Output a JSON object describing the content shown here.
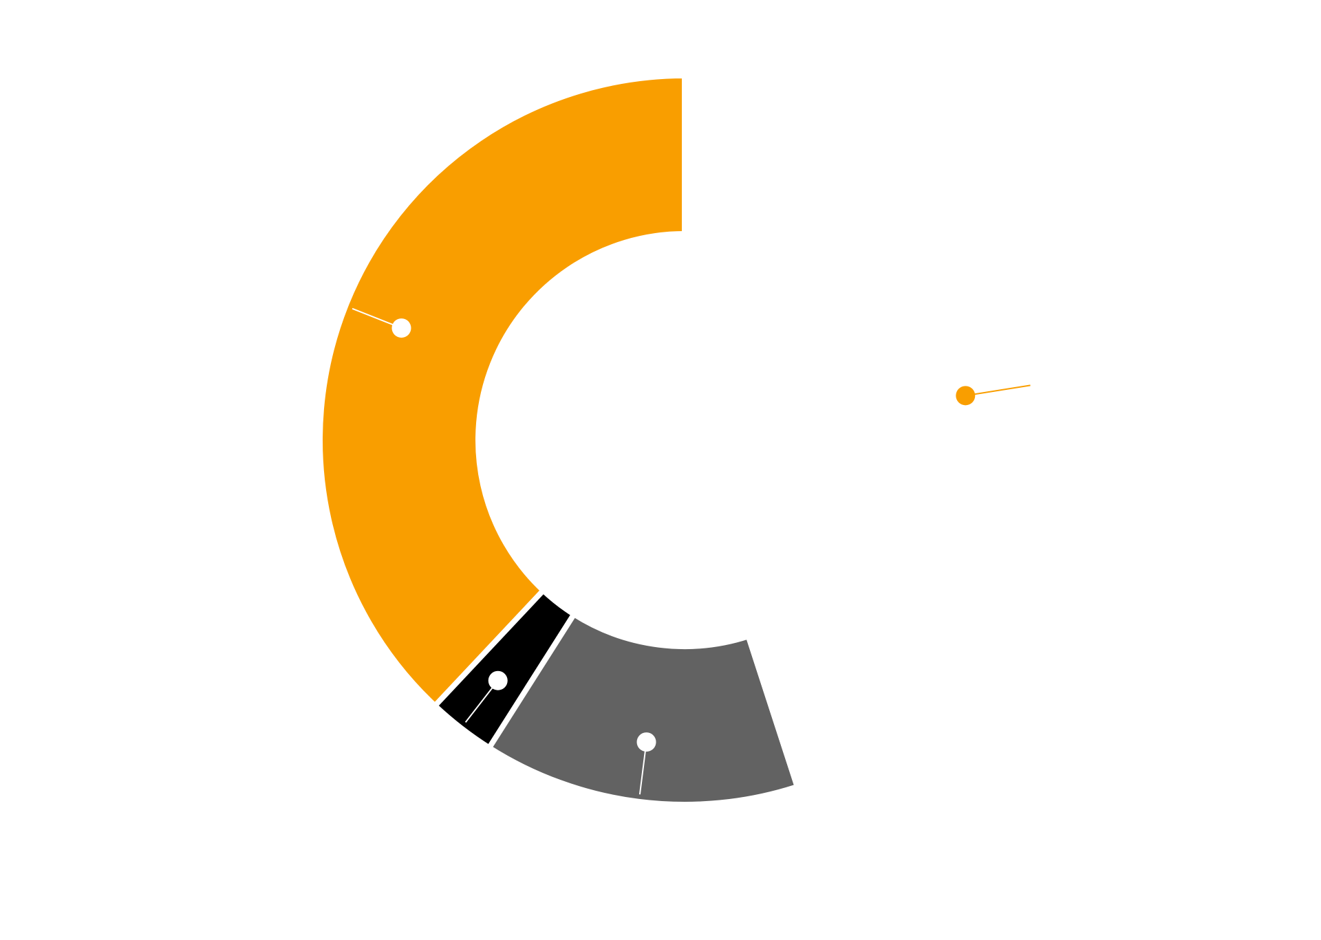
{
  "chart_data": {
    "type": "donut",
    "title": "",
    "segments": [
      {
        "value": 38,
        "color": "#f99e00",
        "marker_color": "#ffffff"
      },
      {
        "value": 3,
        "color": "#000000",
        "marker_color": "#ffffff"
      },
      {
        "value": 14,
        "color": "#626262",
        "marker_color": "#ffffff"
      },
      {
        "value": 45,
        "color": "#ffffff",
        "marker_color": "#f99e00"
      }
    ],
    "start_angle_deg": 0,
    "direction": "counterclockwise",
    "legend": "none",
    "background": "#ffffff"
  }
}
